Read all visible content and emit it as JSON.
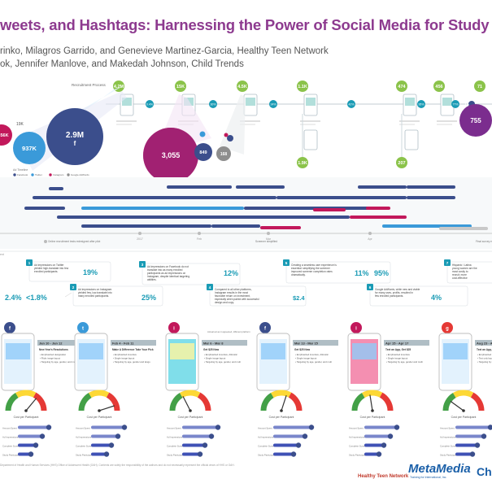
{
  "header": {
    "title": "weets, and Hashtags: Harnessing the Power of Social Media for Study Recru",
    "authors_line1": "rinko, Milagros Garrido, and Genevieve Martinez-Garcia, Healthy Teen Network",
    "authors_line2": "ok, Jennifer Manlove, and Makedah Johnson, Child Trends"
  },
  "process": {
    "label": "Recruitment Process",
    "counts": [
      "4.2M",
      "15K",
      "4.5K",
      "1.1K",
      "474",
      "456",
      "71",
      "755"
    ],
    "lower_counts": [
      "1.9K",
      "207"
    ],
    "pct_labels": [
      "0.4%",
      "30%",
      "24%",
      "42%",
      "95%",
      "77%"
    ]
  },
  "bubbles": {
    "values": [
      "2.9M",
      "937K",
      "356K",
      "3,055",
      "849",
      "168",
      "19K"
    ],
    "colors": {
      "facebook": "#3b4e8c",
      "twitter": "#3a9ad9",
      "instagram": "#c2185b",
      "google": "#8e8e8e",
      "purple": "#7b2d8e"
    }
  },
  "timeline": {
    "legend": [
      "Facebook",
      "Twitter",
      "Instagram",
      "Google AdWords"
    ],
    "notes": [
      "Online recruitment tests redesigned after pilot",
      "Screener simplified",
      "Final survey end"
    ],
    "ticks": [
      "2017",
      "Feb",
      "Mar",
      "Apr"
    ]
  },
  "insights": [
    {
      "num": "1",
      "text": "Ad impressions on Twitter yielded high-translate into few enrolled participants.",
      "stat": "19%",
      "stat_note": "Enrolled participants recruited via Twitter"
    },
    {
      "num": "2",
      "text": "Ad impressions on Instagram yielded few, low-translate into many enrolled participants.",
      "stat": "25%",
      "stat_note": "Enrolled participants recruited via Instagram"
    },
    {
      "num": "3",
      "text": "Ad impressions on Facebook do not translate into as many enrolled participants as ad impressions on Instagram, despite identical targeting abilities.",
      "stat": "12%",
      "stat_note": "Enrolled participants recruited via Facebook"
    },
    {
      "num": "4",
      "text": "Compared to all other platforms, Instagram results in the most favorable return on investment, especially when paired with successful design and copy.",
      "stat": "$2.4",
      "stat_note": "Cost per participant via Instagram"
    },
    {
      "num": "5",
      "text": "Creating a seamless user experience is essential: simplifying the screener improved screener completion rates dramatically.",
      "stat": "11%",
      "stat2": "95%",
      "stat_note": "Screener completion before / after"
    },
    {
      "num": "6",
      "text": "Google AdWords, while new and viable for many uses, profits, resulted in few enrolled participants.",
      "stat": "4%",
      "stat_note": "Enrolled participants via Google"
    },
    {
      "num": "7",
      "text": "Hispanic / Latina young women are the most costly to recruit; more cost-effective Hispanic Black young women and young women of other races and ethnicities."
    }
  ],
  "top_stats": {
    "s1": "2.4%",
    "s2": "<1.8%",
    "s1_note": "Click-to-bite rate New York Resolutions",
    "s2_note": "Click-through rate for other campaigns"
  },
  "campaigns": [
    {
      "platform": "Facebook",
      "icon": "facebook-icon",
      "color": "#3b4e8c",
      "dates": "Jan 10 - Jan 12",
      "name": "New Year's Resolutions",
      "bullets": [
        "Emphasized designation",
        "Flickr image layout",
        "Targeting by age, gender, and multicultural affinity or education level"
      ],
      "cost_label": "Cost per Participant",
      "needle": 0.72
    },
    {
      "platform": "Twitter",
      "icon": "twitter-icon",
      "color": "#3a9ad9",
      "dates": "Feb 4 - Feb 11",
      "name": "Make A Difference Take Your Pick",
      "bullets": [
        "Emphasized incentive",
        "Single image layout",
        "Targeting by age, gender and language"
      ],
      "cost_label": "Cost per Participant",
      "needle": 0.9
    },
    {
      "platform": "Instagram",
      "icon": "instagram-icon",
      "color": "#c2185b",
      "dates": "Mar 6 - Mar 8",
      "name": "Get $25 Now",
      "bullets": [
        "Emphasized incentive, Altruistic",
        "Single image layout",
        "Targeting by age, gender, and multicultural affinity"
      ],
      "cost_label": "Cost per Participant",
      "needle": 0.35
    },
    {
      "platform": "Facebook",
      "icon": "facebook-icon",
      "color": "#3b4e8c",
      "dates": "Mar 13 - Mar 15",
      "name": "Get $25 Now",
      "bullets": [
        "Emphasized incentive, Altruistic",
        "Single image layout",
        "Targeting by age, gender, and multicultural affinity"
      ],
      "cost_label": "Cost per Participant",
      "needle": 0.6
    },
    {
      "platform": "Instagram",
      "icon": "instagram-icon",
      "color": "#c2185b",
      "dates": "Apr 15 - Apr 17",
      "name": "Text an App, Get $25",
      "bullets": [
        "Emphasized incentive",
        "Single image layout",
        "Targeting by age, gender and multicultural affinity"
      ],
      "cost_label": "Cost per Participant",
      "needle": 0.45
    },
    {
      "platform": "Google",
      "icon": "google-icon",
      "color": "#e53935",
      "dates": "Aug 23 - Aug 25",
      "name": "Text an App, Get $25 Make A Difference",
      "bullets": [
        "Emphasized incentive",
        "Text only layout",
        "Targeting by keywords, limited targeting by age and gender"
      ],
      "cost_label": "Cost per Participant",
      "needle": 0.2
    }
  ],
  "metric_labels": [
    "Amount Spent",
    "Ad Impressions",
    "Complete Screener",
    "Study Participants"
  ],
  "sample_ad_label": "Actual ad as it appeared, different platform",
  "footer": {
    "note": "Department of Health and Human Services (HHS) Office of Adolescent Health (OAH). Contents are solely the responsibility of the authors and do not necessarily represent the official views of HHS or OAH.",
    "logo_htn": "Healthy Teen Network",
    "logo_mm": "MetaMedia",
    "logo_mm_sub": "Training for International, Inc.",
    "logo_ct": "Chil"
  }
}
